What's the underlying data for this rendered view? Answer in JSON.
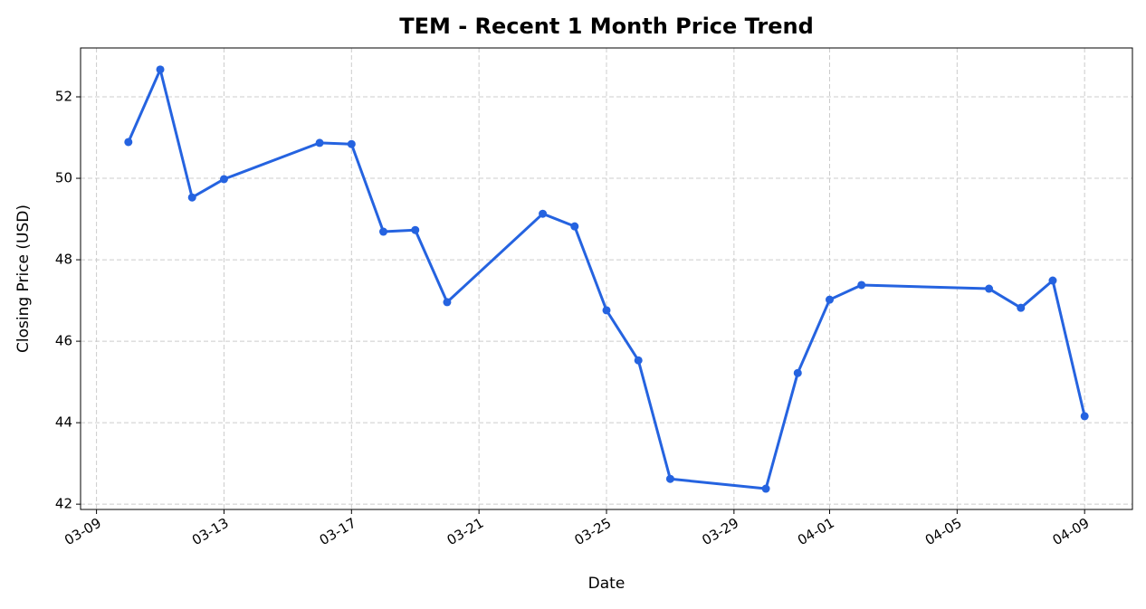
{
  "chart_data": {
    "type": "line",
    "title": "TEM - Recent 1 Month Price Trend",
    "x_label": "Date",
    "y_label": "Closing Price (USD)",
    "x": [
      "03-10",
      "03-11",
      "03-12",
      "03-13",
      "03-16",
      "03-17",
      "03-18",
      "03-19",
      "03-20",
      "03-23",
      "03-24",
      "03-25",
      "03-26",
      "03-27",
      "03-30",
      "03-31",
      "04-01",
      "04-02",
      "04-06",
      "04-07",
      "04-08",
      "04-09"
    ],
    "series": [
      {
        "name": "TEM",
        "color": "#2563e0",
        "values": [
          50.89,
          52.67,
          49.53,
          49.98,
          50.87,
          50.84,
          48.69,
          48.73,
          46.96,
          49.13,
          48.82,
          46.76,
          45.53,
          42.62,
          42.38,
          45.22,
          47.02,
          47.38,
          47.29,
          46.82,
          47.49,
          44.16
        ]
      }
    ],
    "xticks": [
      "03-09",
      "03-13",
      "03-17",
      "03-21",
      "03-25",
      "03-29",
      "04-01",
      "04-05",
      "04-09"
    ],
    "ylim": [
      41.87,
      53.2
    ],
    "yticks": [
      42,
      44,
      46,
      48,
      50,
      52
    ],
    "grid": true
  }
}
